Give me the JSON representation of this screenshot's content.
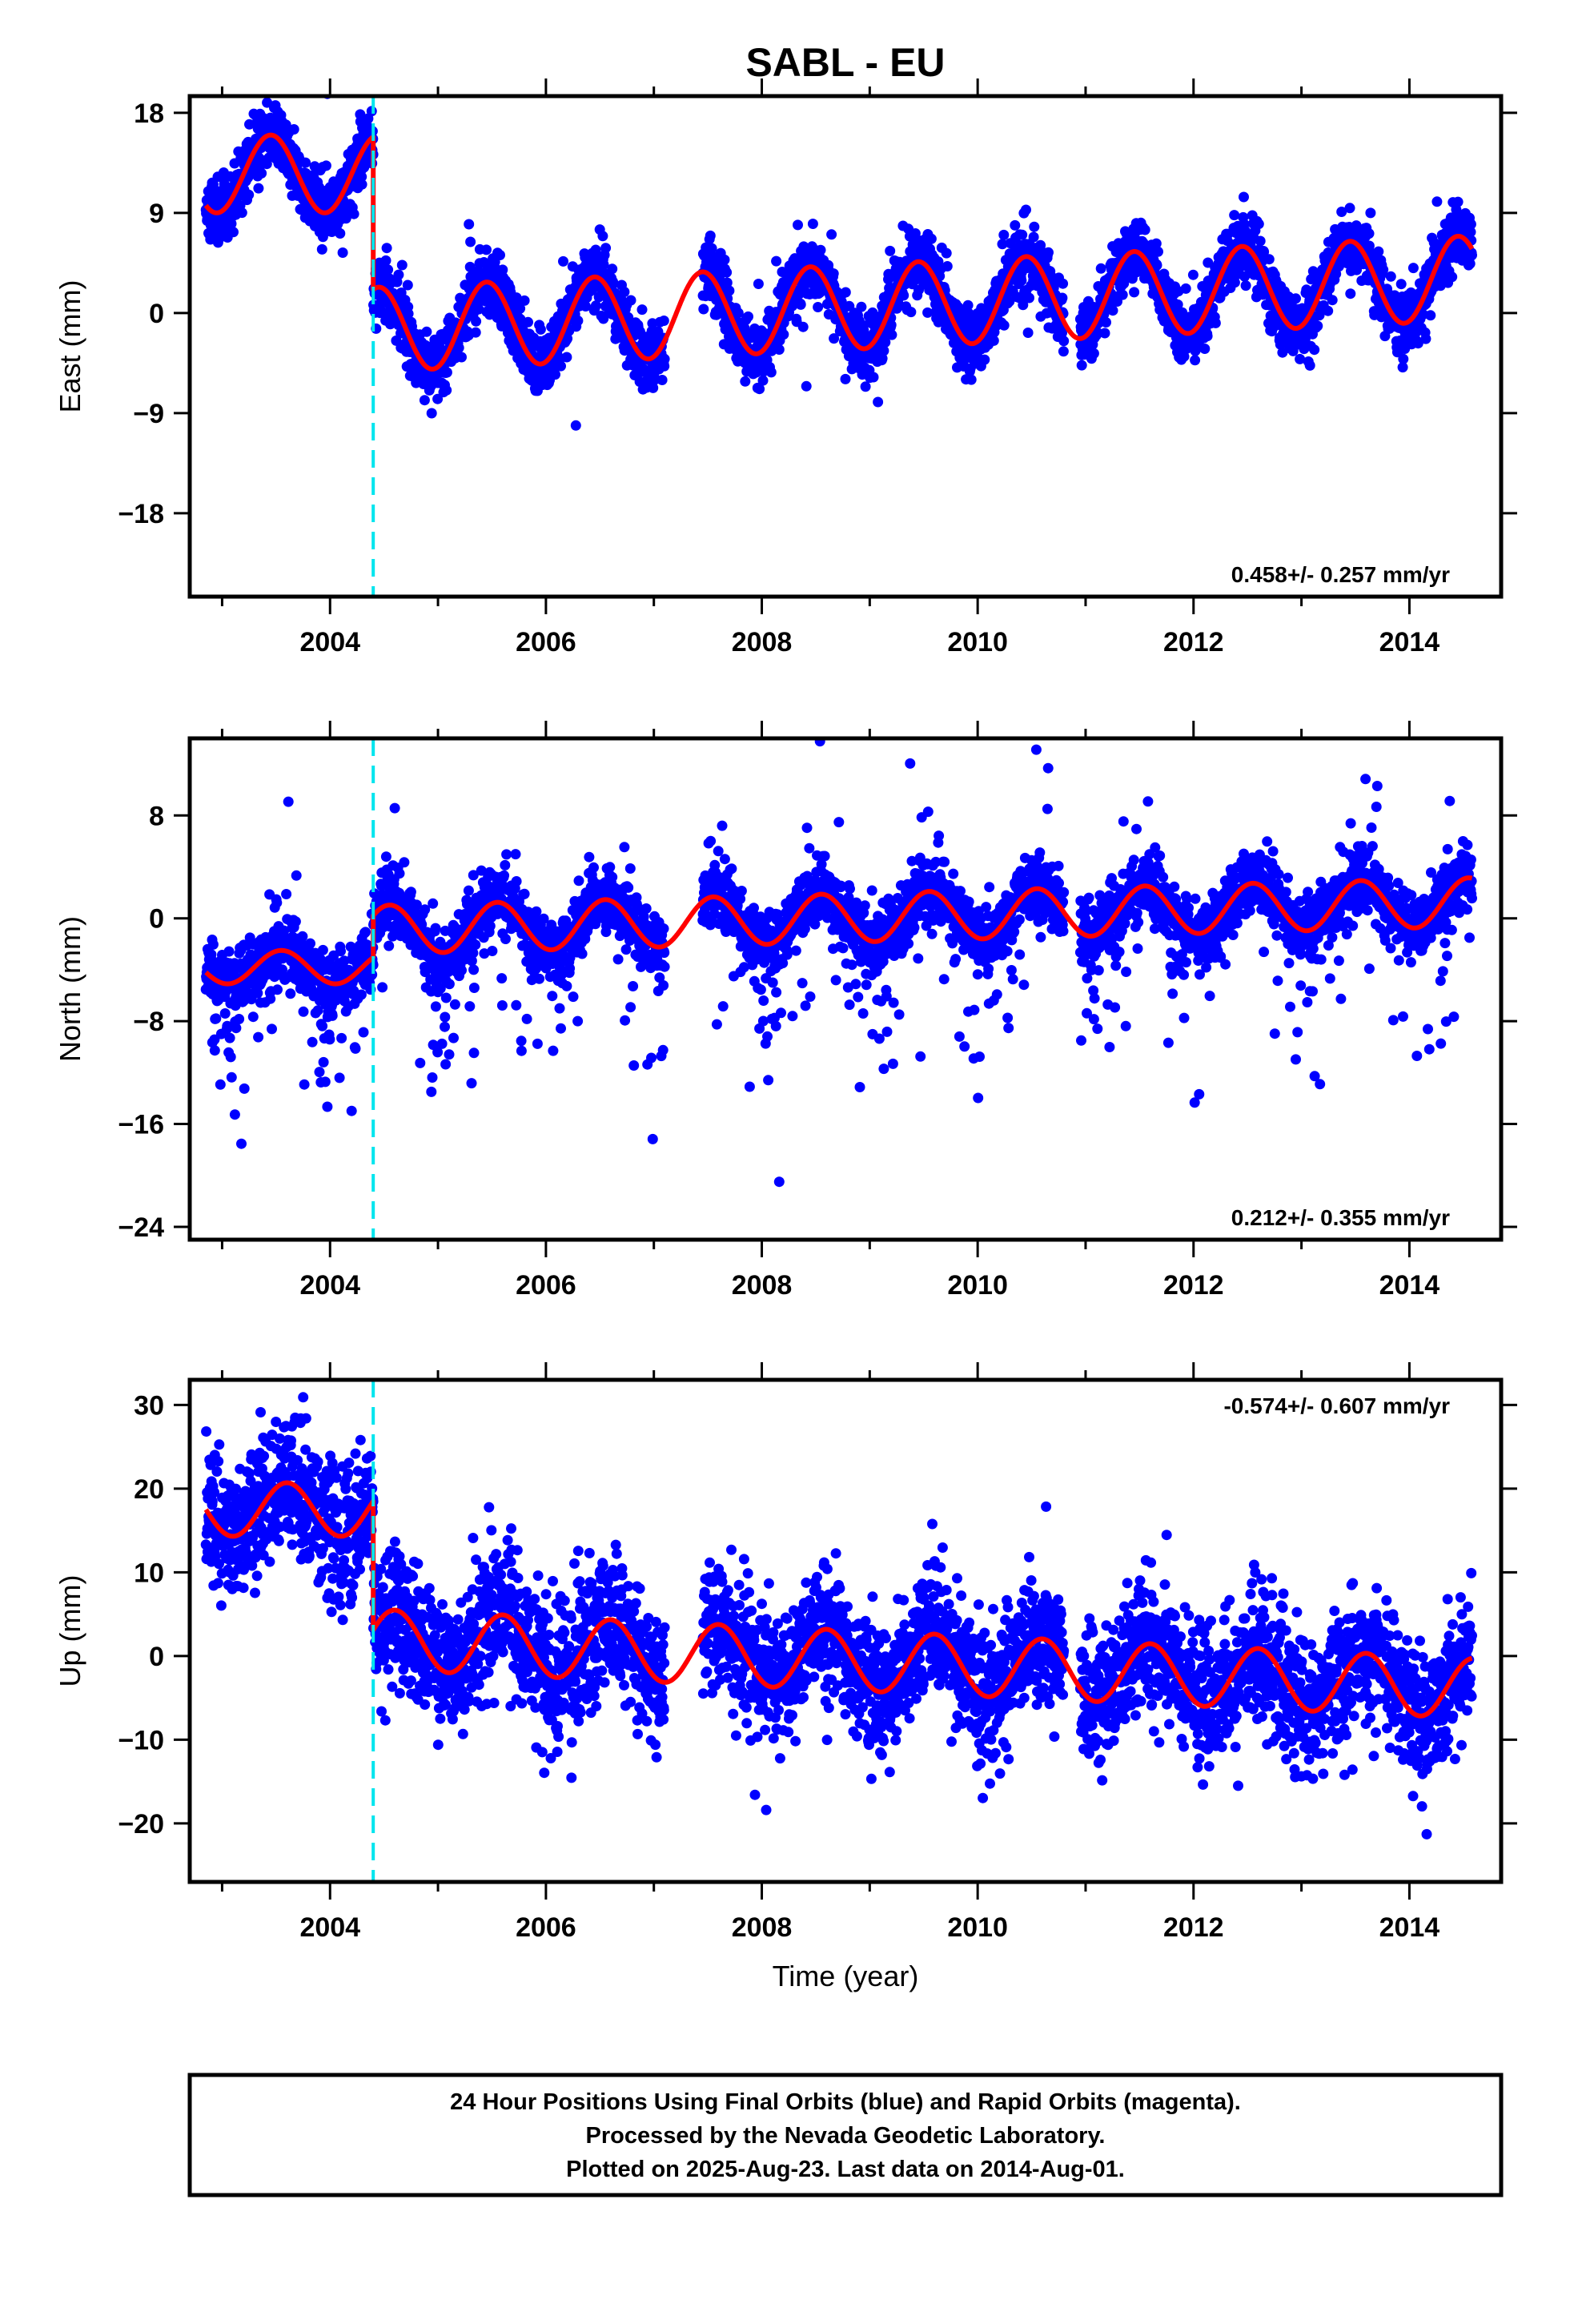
{
  "title": "SABL - EU",
  "xlabel": "Time (year)",
  "footer": {
    "lines": [
      "24 Hour Positions Using Final Orbits (blue) and Rapid Orbits (magenta).",
      "Processed by the Nevada Geodetic Laboratory.",
      "Plotted on 2025-Aug-23. Last data on 2014-Aug-01."
    ]
  },
  "colors": {
    "data": "#0000ff",
    "model": "#ff0000",
    "offset": "#00e5ee",
    "frame": "#000000"
  },
  "chart_data": [
    {
      "type": "scatter",
      "ylabel": "East (mm)",
      "rate": "0.458+/- 0.257 mm/yr",
      "rate_position": "bottom-right",
      "xlim": [
        2002.7,
        2014.85
      ],
      "ylim": [
        -25.5,
        19.5
      ],
      "xticks": [
        2004,
        2006,
        2008,
        2010,
        2012,
        2014
      ],
      "yticks": [
        18,
        9,
        0,
        -9,
        -18
      ],
      "ytick_labels": [
        "18",
        "9",
        "0",
        "−9",
        "−18"
      ],
      "offset_epoch": 2004.4,
      "data_range": [
        2002.85,
        2014.58
      ],
      "model": {
        "pre": {
          "a": 12.5,
          "b": 0.0,
          "amp": 3.5,
          "phase_year": 2003.45
        },
        "post": {
          "a": -1.5,
          "b": 0.458,
          "amp": 3.8,
          "phase_year": 2005.45
        }
      },
      "noise_sd": 1.4,
      "outlier_rate": 0.02,
      "outlier_sd": 3.5,
      "trough_extra": 0,
      "seed": 11
    },
    {
      "type": "scatter",
      "ylabel": "North (mm)",
      "rate": "0.212+/- 0.355 mm/yr",
      "rate_position": "bottom-right",
      "xlim": [
        2002.7,
        2014.85
      ],
      "ylim": [
        -25,
        14
      ],
      "xticks": [
        2004,
        2006,
        2008,
        2010,
        2012,
        2014
      ],
      "yticks": [
        8,
        0,
        -8,
        -16,
        -24
      ],
      "ytick_labels": [
        "8",
        "0",
        "−8",
        "−16",
        "−24"
      ],
      "offset_epoch": 2004.4,
      "data_range": [
        2002.85,
        2014.58
      ],
      "model": {
        "pre": {
          "a": -3.8,
          "b": 0.0,
          "amp": 1.3,
          "phase_year": 2003.55
        },
        "post": {
          "a": -0.9,
          "b": 0.212,
          "amp": 1.9,
          "phase_year": 2005.55
        }
      },
      "noise_sd": 1.2,
      "outlier_rate": 0.09,
      "outlier_sd": 4.5,
      "trough_extra": -5,
      "seed": 23
    },
    {
      "type": "scatter",
      "ylabel": "Up (mm)",
      "rate": "-0.574+/- 0.607 mm/yr",
      "rate_position": "top-right",
      "xlim": [
        2002.7,
        2014.85
      ],
      "ylim": [
        -27,
        33
      ],
      "xticks": [
        2004,
        2006,
        2008,
        2010,
        2012,
        2014
      ],
      "yticks": [
        30,
        20,
        10,
        0,
        -10,
        -20
      ],
      "ytick_labels": [
        "30",
        "20",
        "10",
        "0",
        "−10",
        "−20"
      ],
      "offset_epoch": 2004.4,
      "data_range": [
        2002.85,
        2014.58
      ],
      "model": {
        "pre": {
          "a": 17.5,
          "b": 0.0,
          "amp": 3.2,
          "phase_year": 2003.6
        },
        "post": {
          "a": 2.0,
          "b": -0.574,
          "amp": 3.6,
          "phase_year": 2005.6
        }
      },
      "noise_sd": 3.8,
      "outlier_rate": 0.03,
      "outlier_sd": 6,
      "trough_extra": 0,
      "seed": 37
    }
  ]
}
